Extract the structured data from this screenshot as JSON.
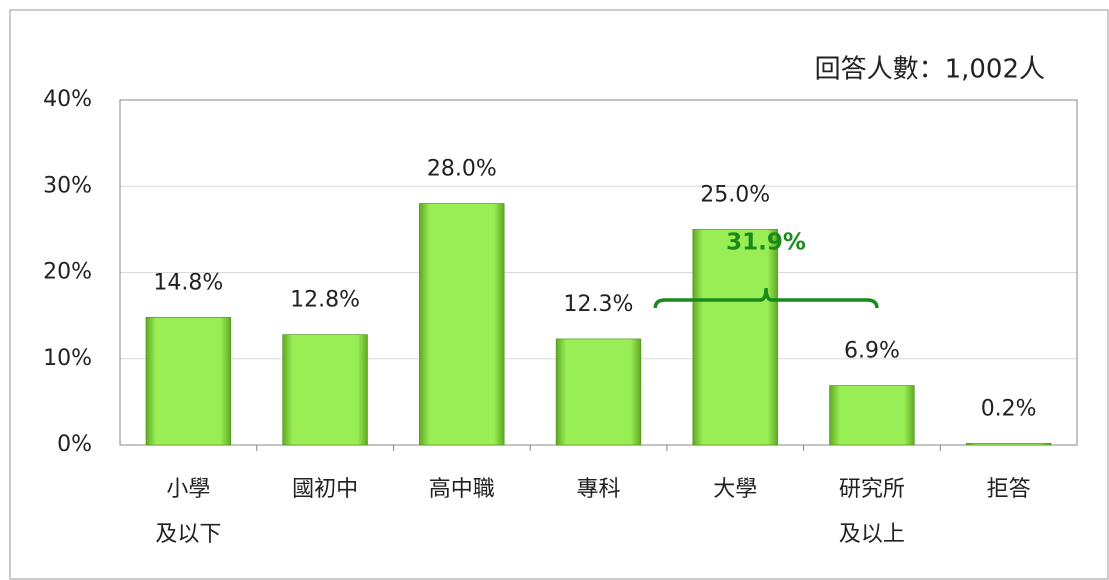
{
  "chart_data": {
    "type": "bar",
    "annotation": "回答人數：1,002人",
    "bracket_label": "31.9%",
    "categories": [
      [
        "小學",
        "及以下"
      ],
      [
        "國初中"
      ],
      [
        "高中職"
      ],
      [
        "專科"
      ],
      [
        "大學"
      ],
      [
        "研究所",
        "及以上"
      ],
      [
        "拒答"
      ]
    ],
    "values": [
      14.8,
      12.8,
      28.0,
      12.3,
      25.0,
      6.9,
      0.2
    ],
    "value_labels": [
      "14.8%",
      "12.8%",
      "28.0%",
      "12.3%",
      "25.0%",
      "6.9%",
      "0.2%"
    ],
    "color": "#99ee55",
    "ylim": [
      0,
      40
    ],
    "yticks": [
      {
        "value": 0,
        "label": "0%"
      },
      {
        "value": 10,
        "label": "10%"
      },
      {
        "value": 20,
        "label": "20%"
      },
      {
        "value": 30,
        "label": "30%"
      },
      {
        "value": 40,
        "label": "40%"
      }
    ],
    "grid": true
  }
}
